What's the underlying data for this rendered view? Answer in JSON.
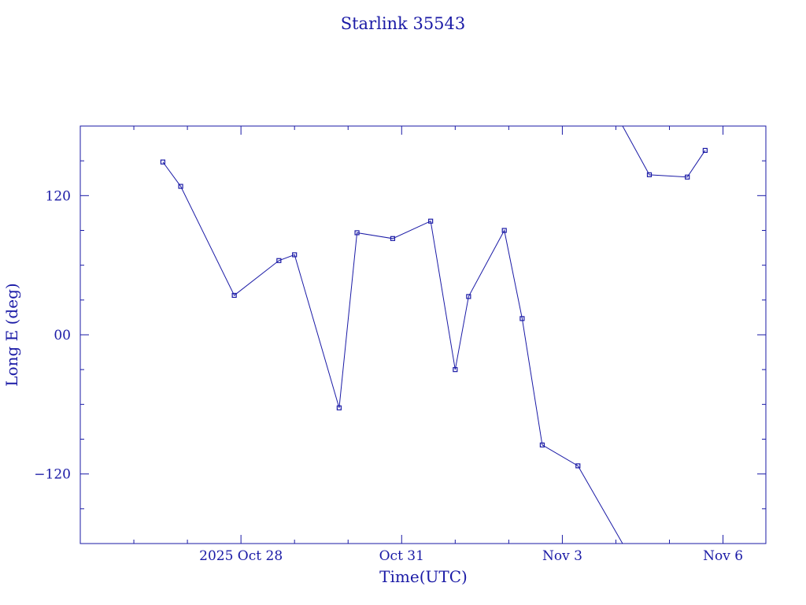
{
  "chart_data": {
    "type": "line",
    "title": "Starlink 35543",
    "xlabel": "Time(UTC)",
    "ylabel": "Long E (deg)",
    "x_ticks": [
      "2025 Oct 28",
      "Oct 31",
      "Nov  3",
      "Nov  6"
    ],
    "y_ticks": [
      "120",
      "00",
      "−120"
    ],
    "ylim": [
      -180,
      180
    ],
    "xlim_days_from_oct25": [
      0.0,
      12.8
    ],
    "grid": false,
    "legend": "none",
    "series": [
      {
        "points": [
          {
            "t": "2025-10-26 13:00",
            "lon": 149
          },
          {
            "t": "2025-10-26 21:00",
            "lon": 128
          },
          {
            "t": "2025-10-27 21:00",
            "lon": 34
          },
          {
            "t": "2025-10-28 17:00",
            "lon": 64
          },
          {
            "t": "2025-10-29 00:00",
            "lon": 69
          },
          {
            "t": "2025-10-29 20:00",
            "lon": -63
          },
          {
            "t": "2025-10-30 04:00",
            "lon": 88
          },
          {
            "t": "2025-10-30 20:00",
            "lon": 83
          },
          {
            "t": "2025-10-31 13:00",
            "lon": 98
          },
          {
            "t": "2025-11-01 00:00",
            "lon": -30
          },
          {
            "t": "2025-11-01 06:00",
            "lon": 33
          },
          {
            "t": "2025-11-01 22:00",
            "lon": 90
          },
          {
            "t": "2025-11-02 06:00",
            "lon": 14
          },
          {
            "t": "2025-11-02 15:00",
            "lon": -95
          },
          {
            "t": "2025-11-03 07:00",
            "lon": -113
          },
          {
            "t": "2025-11-04 03:00",
            "lon": -180
          },
          {
            "t": "2025-11-04 03:00",
            "lon": 180
          },
          {
            "t": "2025-11-04 15:00",
            "lon": 138
          },
          {
            "t": "2025-11-05 08:00",
            "lon": 136
          },
          {
            "t": "2025-11-05 16:00",
            "lon": 159
          }
        ]
      }
    ],
    "markers_hidden_at_wrap": [
      15,
      16
    ],
    "colors": {
      "line": "#1a1aa6",
      "axis": "#1a1aa6",
      "background": "#ffffff"
    }
  }
}
